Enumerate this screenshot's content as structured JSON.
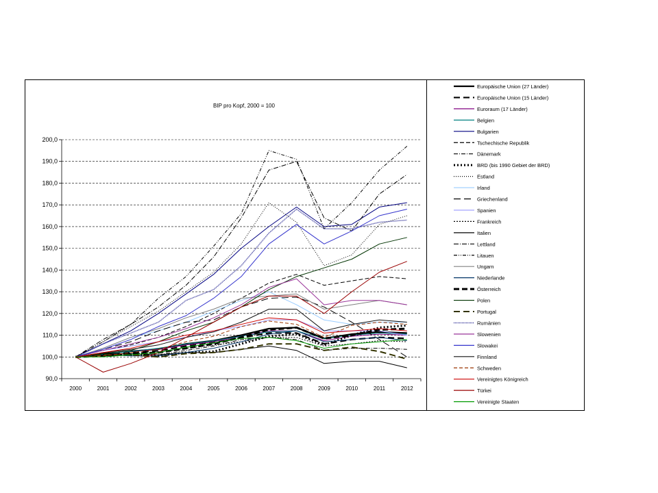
{
  "chart_data": {
    "type": "line",
    "title": "BIP pro Kopf, 2000 = 100",
    "xlabel": "",
    "ylabel": "",
    "x": [
      "2000",
      "2001",
      "2002",
      "2003",
      "2004",
      "2005",
      "2006",
      "2007",
      "2008",
      "2009",
      "2010",
      "2011",
      "2012"
    ],
    "ylim": [
      90,
      200
    ],
    "yticks": [
      "90,0",
      "100,0",
      "110,0",
      "120,0",
      "130,0",
      "140,0",
      "150,0",
      "160,0",
      "170,0",
      "180,0",
      "190,0",
      "200,0"
    ],
    "grid": true,
    "legend_position": "right",
    "series": [
      {
        "name": "Europäische Union (27 Länder)",
        "color": "#000000",
        "dash": "",
        "width": 2.2,
        "values": [
          100,
          101.6,
          102.6,
          103.6,
          106,
          107.5,
          110,
          113,
          113.5,
          108.5,
          110.5,
          111.5,
          111
        ]
      },
      {
        "name": "Europäische Union (15 Länder)",
        "color": "#000000",
        "dash": "9,5",
        "width": 2.2,
        "values": [
          100,
          101.2,
          102,
          102.8,
          105,
          106.5,
          108.8,
          111,
          111,
          106,
          108,
          109,
          108.5
        ]
      },
      {
        "name": "Euroraum (17 Länder)",
        "color": "#800080",
        "dash": "",
        "width": 1,
        "values": [
          100,
          101.5,
          102.5,
          103.5,
          105.5,
          107,
          109.5,
          112,
          112,
          107.5,
          109.5,
          110.5,
          110
        ]
      },
      {
        "name": "Belgien",
        "color": "#008080",
        "dash": "",
        "width": 1,
        "values": [
          100,
          101.2,
          102.5,
          104,
          106,
          107.5,
          109.5,
          111.5,
          112,
          108.5,
          110,
          111,
          110.5
        ]
      },
      {
        "name": "Bulgarien",
        "color": "#000080",
        "dash": "",
        "width": 1,
        "values": [
          100,
          106,
          112,
          120,
          129,
          138,
          150,
          160,
          169,
          160,
          161,
          169,
          171
        ]
      },
      {
        "name": "Tschechische Republik",
        "color": "#000000",
        "dash": "6,3",
        "width": 1,
        "values": [
          100,
          103,
          105.5,
          109,
          114,
          120,
          127,
          134,
          138,
          133,
          135,
          137,
          136
        ]
      },
      {
        "name": "Dänemark",
        "color": "#000000",
        "dash": "6,2,1,2",
        "width": 1,
        "values": [
          100,
          100.5,
          100.8,
          101,
          103,
          105,
          108,
          109,
          108,
          103,
          104,
          104,
          103.5
        ]
      },
      {
        "name": "BRD (bis 1990 Gebiet der BRD)",
        "color": "#000000",
        "dash": "2,3",
        "width": 3,
        "values": [
          100,
          101,
          101,
          100.5,
          102,
          102.5,
          106,
          109.5,
          110.5,
          105.5,
          110,
          113.5,
          114.5
        ]
      },
      {
        "name": "Estland",
        "color": "#000000",
        "dash": "1,2",
        "width": 1,
        "values": [
          100,
          107,
          114,
          121,
          130,
          139,
          152,
          171,
          162,
          142,
          147,
          161,
          165
        ]
      },
      {
        "name": "Irland",
        "color": "#99ccff",
        "dash": "",
        "width": 1,
        "values": [
          100,
          104,
          109,
          112,
          116,
          121,
          126,
          130,
          124,
          117,
          115,
          116,
          116
        ]
      },
      {
        "name": "Griechenland",
        "color": "#000000",
        "dash": "10,5",
        "width": 1,
        "values": [
          100,
          103.5,
          107,
          112,
          116,
          117,
          123,
          127,
          127.5,
          123,
          116,
          108,
          100
        ]
      },
      {
        "name": "Spanien",
        "color": "#9999ff",
        "dash": "",
        "width": 1,
        "values": [
          100,
          103,
          105,
          107,
          109,
          112,
          114,
          117,
          117,
          112,
          112,
          112,
          110
        ]
      },
      {
        "name": "Frankreich",
        "color": "#000000",
        "dash": "2,2",
        "width": 1,
        "values": [
          100,
          101,
          101.5,
          102,
          104,
          105.5,
          107,
          109,
          109,
          105,
          106,
          107.5,
          107
        ]
      },
      {
        "name": "Italien",
        "color": "#000000",
        "dash": "",
        "width": 1,
        "values": [
          100,
          101.5,
          101.5,
          101,
          102,
          102,
          103.5,
          105,
          103,
          97,
          98,
          98,
          95
        ]
      },
      {
        "name": "Lettland",
        "color": "#000000",
        "dash": "7,2,1,2",
        "width": 1,
        "values": [
          100,
          108,
          115,
          123,
          133,
          146,
          164,
          186,
          190,
          164,
          158,
          175,
          184
        ]
      },
      {
        "name": "Litauen",
        "color": "#000000",
        "dash": "5,2,1,2,1,2",
        "width": 1,
        "values": [
          100,
          107,
          115,
          127,
          137,
          151,
          166,
          195,
          191,
          159,
          171,
          186,
          197
        ]
      },
      {
        "name": "Ungarn",
        "color": "#808080",
        "dash": "",
        "width": 1,
        "values": [
          100,
          104,
          109,
          113,
          118,
          122,
          127,
          128,
          129,
          122,
          124,
          126,
          124
        ]
      },
      {
        "name": "Niederlande",
        "color": "#003366",
        "dash": "",
        "width": 1,
        "values": [
          100,
          101,
          100.5,
          100.5,
          102,
          104,
          107,
          110.5,
          112,
          107,
          108,
          109,
          107.5
        ]
      },
      {
        "name": "Österreich",
        "color": "#000000",
        "dash": "8,4",
        "width": 3,
        "values": [
          100,
          100.5,
          101.5,
          102,
          104,
          106,
          109,
          112.5,
          113.5,
          108.5,
          110,
          112.5,
          113
        ]
      },
      {
        "name": "Polen",
        "color": "#003300",
        "dash": "",
        "width": 1,
        "values": [
          100,
          101.5,
          103,
          107,
          112,
          116,
          123,
          131,
          137,
          141,
          145,
          152,
          155
        ]
      },
      {
        "name": "Portugal",
        "color": "#333300",
        "dash": "9,5",
        "width": 2,
        "values": [
          100,
          101,
          101,
          100,
          101.5,
          102,
          103.5,
          106,
          106,
          103,
          104.5,
          102.5,
          99
        ]
      },
      {
        "name": "Rumänien",
        "color": "#333399",
        "dash": "1,1",
        "width": 1.5,
        "values": [
          100,
          106,
          111,
          116,
          126,
          131,
          142,
          157,
          168,
          159,
          159,
          162,
          163
        ]
      },
      {
        "name": "Slowenien",
        "color": "#993399",
        "dash": "",
        "width": 1,
        "values": [
          100,
          103,
          106,
          109,
          113,
          118,
          124,
          132,
          136,
          124,
          126,
          126,
          124
        ]
      },
      {
        "name": "Slowakei",
        "color": "#3333cc",
        "dash": "",
        "width": 1,
        "values": [
          100,
          103.5,
          108,
          114,
          119,
          127,
          137,
          152,
          161,
          152,
          158,
          165,
          168
        ]
      },
      {
        "name": "Finnland",
        "color": "#111111",
        "dash": "",
        "width": 1,
        "values": [
          100,
          102,
          103.5,
          105.5,
          109,
          111.5,
          116,
          122,
          122,
          112,
          115,
          117,
          116
        ]
      },
      {
        "name": "Schweden",
        "color": "#993300",
        "dash": "5,3",
        "width": 1,
        "values": [
          100,
          100.5,
          102,
          103.5,
          107,
          109.5,
          114,
          116.5,
          115,
          109,
          114.5,
          116,
          115
        ]
      },
      {
        "name": "Vereinigtes Königreich",
        "color": "#cc0000",
        "dash": "",
        "width": 1,
        "values": [
          100,
          102,
          104,
          107,
          110,
          112,
          115,
          118,
          117,
          111,
          112,
          113,
          112
        ]
      },
      {
        "name": "Türkei",
        "color": "#990000",
        "dash": "",
        "width": 1,
        "values": [
          100,
          93,
          97,
          102,
          109,
          116,
          123,
          128,
          128,
          120,
          130,
          139,
          144
        ]
      },
      {
        "name": "Vereinigte Staaten",
        "color": "#009900",
        "dash": "",
        "width": 1,
        "values": [
          100,
          100,
          101,
          102,
          104.5,
          106.5,
          108.5,
          109,
          107.5,
          104,
          106,
          107,
          108
        ]
      }
    ]
  }
}
